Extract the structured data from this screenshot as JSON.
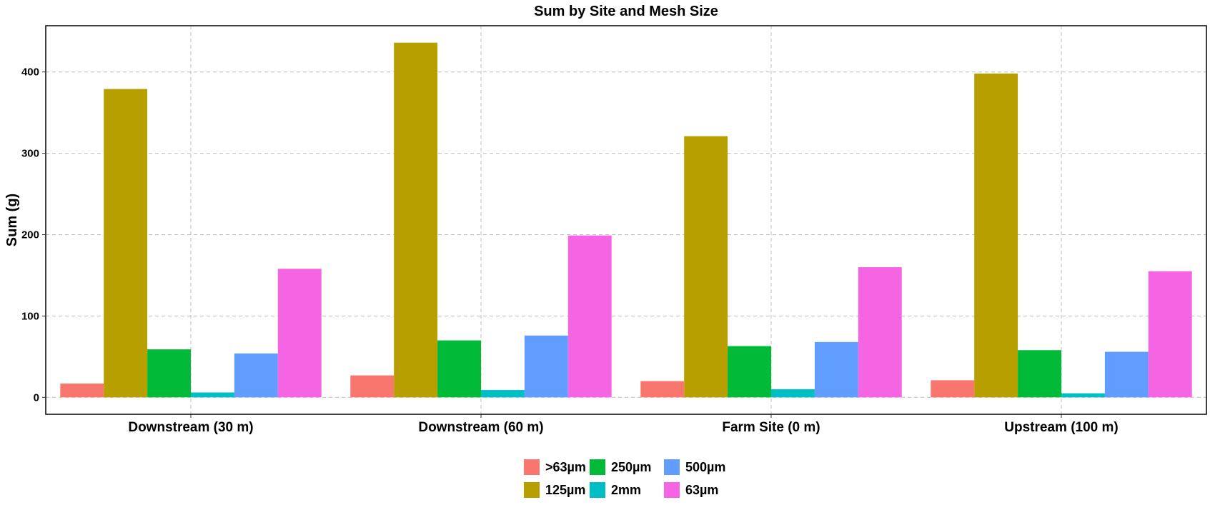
{
  "chart_data": {
    "type": "bar",
    "title": "Sum by Site and Mesh Size",
    "xlabel": "",
    "ylabel": "Sum (g)",
    "categories": [
      "Downstream (30 m)",
      "Downstream (60 m)",
      "Farm Site (0 m)",
      "Upstream (100 m)"
    ],
    "series": [
      {
        "name": ">63µm",
        "color": "#F8766D",
        "values": [
          17,
          27,
          20,
          21
        ]
      },
      {
        "name": "125µm",
        "color": "#B79F00",
        "values": [
          379,
          436,
          321,
          398
        ]
      },
      {
        "name": "250µm",
        "color": "#00BA38",
        "values": [
          59,
          70,
          63,
          58
        ]
      },
      {
        "name": "2mm",
        "color": "#00BFC4",
        "values": [
          6,
          9,
          10,
          5
        ]
      },
      {
        "name": "500µm",
        "color": "#619CFF",
        "values": [
          54,
          76,
          68,
          56
        ]
      },
      {
        "name": "63µm",
        "color": "#F564E3",
        "values": [
          158,
          199,
          160,
          155
        ]
      }
    ],
    "yticks": [
      0,
      100,
      200,
      300,
      400
    ],
    "ylim": [
      -20.8,
      456.8
    ],
    "grid": true,
    "legend_position": "bottom"
  }
}
